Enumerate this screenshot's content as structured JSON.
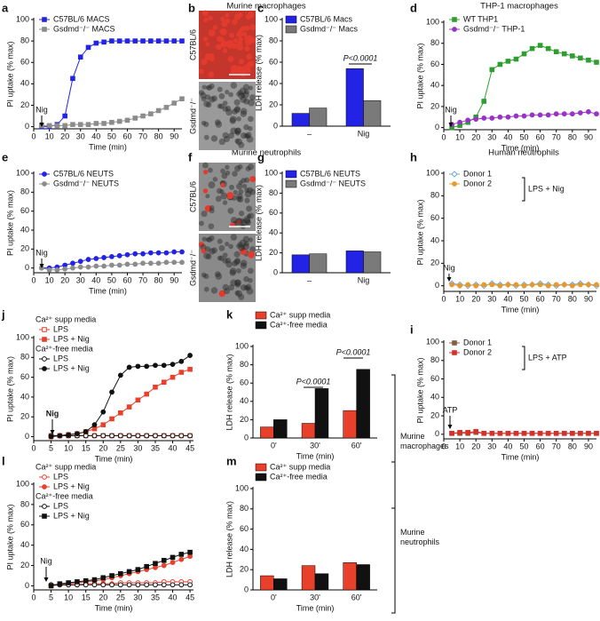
{
  "sections": [
    "Murine macrophages",
    "THP-1 macrophages",
    "Murine neutrophils",
    "Human neutrophils"
  ],
  "chart_data": [
    {
      "panel": "a",
      "type": "line",
      "ylabel": "PI uptake (% max)",
      "xlabel": "Time (min)",
      "xlim": [
        0,
        95
      ],
      "xticks": [
        0,
        10,
        20,
        30,
        40,
        50,
        60,
        70,
        80,
        90
      ],
      "ylim": [
        -2,
        100
      ],
      "yticks": [
        0,
        20,
        40,
        60,
        80,
        100
      ],
      "x": [
        5,
        10,
        15,
        20,
        25,
        30,
        35,
        40,
        45,
        50,
        55,
        60,
        65,
        70,
        75,
        80,
        85,
        90,
        95
      ],
      "series": [
        {
          "name": "C57BL/6 MACS",
          "color": "#2323e6",
          "marker": "square",
          "filled": true,
          "values": [
            0,
            0,
            2,
            10,
            45,
            65,
            74,
            78,
            79,
            80,
            80,
            80,
            80,
            80,
            80,
            80,
            80,
            80,
            80
          ]
        },
        {
          "name": "Gsdmd⁻/⁻ MACS",
          "color": "#8c8c8c",
          "marker": "square",
          "filled": true,
          "values": [
            1,
            1,
            1,
            1,
            2,
            2,
            2,
            3,
            3,
            4,
            5,
            6,
            8,
            10,
            12,
            15,
            18,
            22,
            26
          ]
        }
      ],
      "annotations": [
        "Nig"
      ]
    },
    {
      "panel": "b",
      "type": "image",
      "labels": [
        "C57BL/6",
        "Gsdmd⁻/⁻"
      ]
    },
    {
      "panel": "c",
      "type": "bar",
      "ylabel": "LDH release (% max)",
      "categories": [
        "–",
        "Nig"
      ],
      "ylim": [
        0,
        100
      ],
      "yticks": [
        0,
        20,
        40,
        60,
        80,
        100
      ],
      "series": [
        {
          "name": "C57BL/6 Macs",
          "color": "#2323e6",
          "values": [
            12,
            54
          ]
        },
        {
          "name": "Gsdmd⁻/⁻ Macs",
          "color": "#7a7a7a",
          "values": [
            17,
            24
          ]
        }
      ],
      "annotations": [
        "P<0.0001"
      ]
    },
    {
      "panel": "d",
      "type": "line",
      "ylabel": "PI uptake (% max)",
      "xlabel": "Time (min)",
      "xlim": [
        0,
        95
      ],
      "xticks": [
        0,
        10,
        20,
        30,
        40,
        50,
        60,
        70,
        80,
        90
      ],
      "ylim": [
        -2,
        100
      ],
      "yticks": [
        0,
        20,
        40,
        60,
        80,
        100
      ],
      "x": [
        5,
        10,
        15,
        20,
        25,
        30,
        35,
        40,
        45,
        50,
        55,
        60,
        65,
        70,
        75,
        80,
        85,
        90,
        95
      ],
      "series": [
        {
          "name": "WT THP1",
          "color": "#2e9e2e",
          "marker": "square",
          "filled": true,
          "values": [
            0,
            2,
            5,
            10,
            25,
            55,
            60,
            63,
            65,
            70,
            75,
            78,
            75,
            72,
            70,
            68,
            66,
            64,
            62
          ]
        },
        {
          "name": "Gsdmd⁻/⁻ THP-1",
          "color": "#9a32c8",
          "marker": "circle",
          "filled": true,
          "values": [
            3,
            5,
            7,
            8,
            9,
            9,
            10,
            10,
            11,
            11,
            12,
            12,
            12,
            13,
            13,
            13,
            14,
            15,
            13
          ]
        }
      ],
      "annotations": [
        "Nig"
      ]
    },
    {
      "panel": "e",
      "type": "line",
      "ylabel": "PI uptake (% max)",
      "xlabel": "Time (min)",
      "xlim": [
        0,
        95
      ],
      "xticks": [
        0,
        10,
        20,
        30,
        40,
        50,
        60,
        70,
        80,
        90
      ],
      "ylim": [
        -5,
        100
      ],
      "yticks": [
        0,
        20,
        40,
        60,
        80,
        100
      ],
      "x": [
        5,
        10,
        15,
        20,
        25,
        30,
        35,
        40,
        45,
        50,
        55,
        60,
        65,
        70,
        75,
        80,
        85,
        90,
        95
      ],
      "series": [
        {
          "name": "C57BL/6 NEUTS",
          "color": "#2323e6",
          "marker": "circle",
          "filled": true,
          "values": [
            0,
            0,
            1,
            3,
            5,
            7,
            9,
            10,
            11,
            12,
            13,
            14,
            15,
            15,
            16,
            16,
            16,
            17,
            17
          ]
        },
        {
          "name": "Gsdmd⁻/⁻ NEUTS",
          "color": "#8c8c8c",
          "marker": "circle",
          "filled": true,
          "values": [
            0,
            -2,
            -2,
            -1,
            0,
            1,
            1,
            2,
            2,
            3,
            3,
            4,
            4,
            5,
            5,
            5,
            6,
            6,
            6
          ]
        }
      ],
      "annotations": [
        "Nig"
      ]
    },
    {
      "panel": "f",
      "type": "image",
      "labels": [
        "C57BL/6",
        "Gsdmd⁻/⁻"
      ]
    },
    {
      "panel": "g",
      "type": "bar",
      "ylabel": "LDH release (% max)",
      "categories": [
        "–",
        "Nig"
      ],
      "ylim": [
        0,
        100
      ],
      "yticks": [
        0,
        20,
        40,
        60,
        80,
        100
      ],
      "series": [
        {
          "name": "C57BL/6 NEUTS",
          "color": "#2323e6",
          "values": [
            18,
            22
          ]
        },
        {
          "name": "Gsdmd⁻/⁻ NEUTS",
          "color": "#7a7a7a",
          "values": [
            19,
            21
          ]
        }
      ]
    },
    {
      "panel": "h",
      "type": "line",
      "ylabel": "PI uptake (% max)",
      "xlabel": "Time (min)",
      "xlim": [
        0,
        95
      ],
      "xticks": [
        0,
        10,
        20,
        30,
        40,
        50,
        60,
        70,
        80,
        90
      ],
      "ylim": [
        -5,
        100
      ],
      "yticks": [
        0,
        20,
        40,
        60,
        80,
        100
      ],
      "x": [
        5,
        10,
        15,
        20,
        25,
        30,
        35,
        40,
        45,
        50,
        55,
        60,
        65,
        70,
        75,
        80,
        85,
        90,
        95
      ],
      "series": [
        {
          "name": "Donor 1",
          "color": "#6fa8dc",
          "marker": "diamond",
          "filled": false,
          "values": [
            2,
            1,
            0,
            1,
            0,
            2,
            1,
            1,
            0,
            1,
            1,
            2,
            1,
            0,
            1,
            1,
            2,
            1,
            0
          ]
        },
        {
          "name": "Donor 2",
          "color": "#e69a2e",
          "marker": "circle",
          "filled": true,
          "values": [
            1,
            0,
            1,
            0,
            1,
            1,
            0,
            1,
            1,
            0,
            1,
            1,
            0,
            1,
            1,
            0,
            1,
            1,
            1
          ]
        }
      ],
      "annotations": [
        "Nig",
        "LPS + Nig"
      ]
    },
    {
      "panel": "i",
      "type": "line",
      "ylabel": "PI uptake (% max)",
      "xlabel": "Time (min)",
      "xlim": [
        0,
        95
      ],
      "xticks": [
        0,
        10,
        20,
        30,
        40,
        50,
        60,
        70,
        80,
        90
      ],
      "ylim": [
        -5,
        100
      ],
      "yticks": [
        0,
        20,
        40,
        60,
        80,
        100
      ],
      "x": [
        5,
        10,
        15,
        20,
        25,
        30,
        35,
        40,
        45,
        50,
        55,
        60,
        65,
        70,
        75,
        80,
        85,
        90,
        95
      ],
      "series": [
        {
          "name": "Donor 1",
          "color": "#8b5a3c",
          "marker": "square",
          "filled": true,
          "values": [
            1,
            1,
            1,
            2,
            1,
            1,
            1,
            1,
            1,
            1,
            1,
            1,
            1,
            1,
            1,
            1,
            1,
            1,
            1
          ]
        },
        {
          "name": "Donor 2",
          "color": "#d7302a",
          "marker": "square",
          "filled": true,
          "values": [
            1,
            2,
            2,
            3,
            1,
            1,
            1,
            1,
            1,
            1,
            1,
            1,
            1,
            1,
            1,
            1,
            1,
            1,
            1
          ]
        }
      ],
      "annotations": [
        "ATP",
        "LPS + ATP"
      ]
    },
    {
      "panel": "j",
      "type": "line",
      "ylabel": "PI uptake (% max)",
      "xlabel": "Time (min)",
      "xlim": [
        0,
        46
      ],
      "xticks": [
        0,
        5,
        10,
        15,
        20,
        25,
        30,
        35,
        40,
        45
      ],
      "ylim": [
        -4,
        100
      ],
      "yticks": [
        0,
        20,
        40,
        60,
        80,
        100
      ],
      "x": [
        5,
        7.5,
        10,
        12.5,
        15,
        17.5,
        20,
        22.5,
        25,
        27.5,
        30,
        32.5,
        35,
        37.5,
        40,
        42.5,
        45
      ],
      "legend_headers": [
        "Ca²⁺ supp media",
        "Ca²⁺-free media"
      ],
      "series": [
        {
          "name": "LPS",
          "color": "#e8402a",
          "marker": "square",
          "filled": false,
          "values": [
            1,
            1,
            1,
            1,
            1,
            1,
            1,
            1,
            1,
            1,
            1,
            1,
            1,
            1,
            1,
            1,
            1
          ]
        },
        {
          "name": "LPS + Nig",
          "color": "#e8402a",
          "marker": "square",
          "filled": true,
          "values": [
            0,
            1,
            2,
            3,
            5,
            8,
            12,
            18,
            24,
            30,
            37,
            43,
            50,
            55,
            60,
            65,
            68
          ]
        },
        {
          "name": "LPS",
          "color": "#111111",
          "marker": "circle",
          "filled": false,
          "values": [
            1,
            1,
            1,
            1,
            1,
            1,
            1,
            1,
            1,
            1,
            1,
            1,
            1,
            1,
            1,
            1,
            1
          ]
        },
        {
          "name": "LPS + Nig",
          "color": "#111111",
          "marker": "circle",
          "filled": true,
          "values": [
            0,
            1,
            2,
            3,
            5,
            12,
            25,
            45,
            62,
            70,
            71,
            71,
            72,
            72,
            73,
            76,
            82
          ]
        }
      ],
      "annotations": [
        "Nig"
      ]
    },
    {
      "panel": "k",
      "type": "bar",
      "ylabel": "LDH release (% max)",
      "xlabel": "Time (min)",
      "categories": [
        "0'",
        "30'",
        "60'"
      ],
      "ylim": [
        0,
        100
      ],
      "yticks": [
        0,
        20,
        40,
        60,
        80,
        100
      ],
      "series": [
        {
          "name": "Ca²⁺ supp media",
          "color": "#e8402a",
          "values": [
            12,
            16,
            30
          ]
        },
        {
          "name": "Ca²⁺-free media",
          "color": "#111111",
          "values": [
            20,
            54,
            75
          ]
        }
      ],
      "annotations": [
        "P<0.0001",
        "P<0.0001",
        "Murine macrophages"
      ]
    },
    {
      "panel": "l",
      "type": "line",
      "ylabel": "PI uptake (% max)",
      "xlabel": "Time (min)",
      "xlim": [
        0,
        46
      ],
      "xticks": [
        0,
        5,
        10,
        15,
        20,
        25,
        30,
        35,
        40,
        45
      ],
      "ylim": [
        -4,
        100
      ],
      "yticks": [
        0,
        20,
        40,
        60,
        80,
        100
      ],
      "x": [
        5,
        7.5,
        10,
        12.5,
        15,
        17.5,
        20,
        22.5,
        25,
        27.5,
        30,
        32.5,
        35,
        37.5,
        40,
        42.5,
        45
      ],
      "legend_headers": [
        "Ca²⁺ supp media",
        "Ca²⁺-free media"
      ],
      "series": [
        {
          "name": "LPS",
          "color": "#e8402a",
          "marker": "circle",
          "filled": false,
          "values": [
            1,
            1,
            1,
            1,
            2,
            2,
            2,
            2,
            3,
            3,
            3,
            3,
            3,
            4,
            4,
            4,
            4
          ]
        },
        {
          "name": "LPS + Nig",
          "color": "#e8402a",
          "marker": "circle",
          "filled": true,
          "values": [
            0,
            1,
            2,
            3,
            4,
            5,
            6,
            8,
            10,
            12,
            14,
            16,
            18,
            20,
            23,
            26,
            29
          ]
        },
        {
          "name": "LPS",
          "color": "#111111",
          "marker": "circle",
          "filled": false,
          "values": [
            1,
            1,
            1,
            1,
            1,
            1,
            1,
            1,
            1,
            1,
            1,
            1,
            1,
            1,
            1,
            1,
            1
          ]
        },
        {
          "name": "LPS + Nig",
          "color": "#111111",
          "marker": "square",
          "filled": true,
          "values": [
            0,
            2,
            3,
            4,
            5,
            6,
            8,
            10,
            12,
            14,
            16,
            19,
            22,
            25,
            28,
            31,
            33
          ]
        }
      ],
      "annotations": [
        "Nig"
      ]
    },
    {
      "panel": "m",
      "type": "bar",
      "ylabel": "LDH release (% max)",
      "xlabel": "Time (min)",
      "categories": [
        "0'",
        "30'",
        "60'"
      ],
      "ylim": [
        0,
        100
      ],
      "yticks": [
        0,
        20,
        40,
        60,
        80,
        100
      ],
      "series": [
        {
          "name": "Ca²⁺ supp media",
          "color": "#e8402a",
          "values": [
            14,
            24,
            27
          ]
        },
        {
          "name": "Ca²⁺-free media",
          "color": "#111111",
          "values": [
            11,
            16,
            25
          ]
        }
      ],
      "annotations": [
        "Murine neutrophils"
      ]
    }
  ]
}
